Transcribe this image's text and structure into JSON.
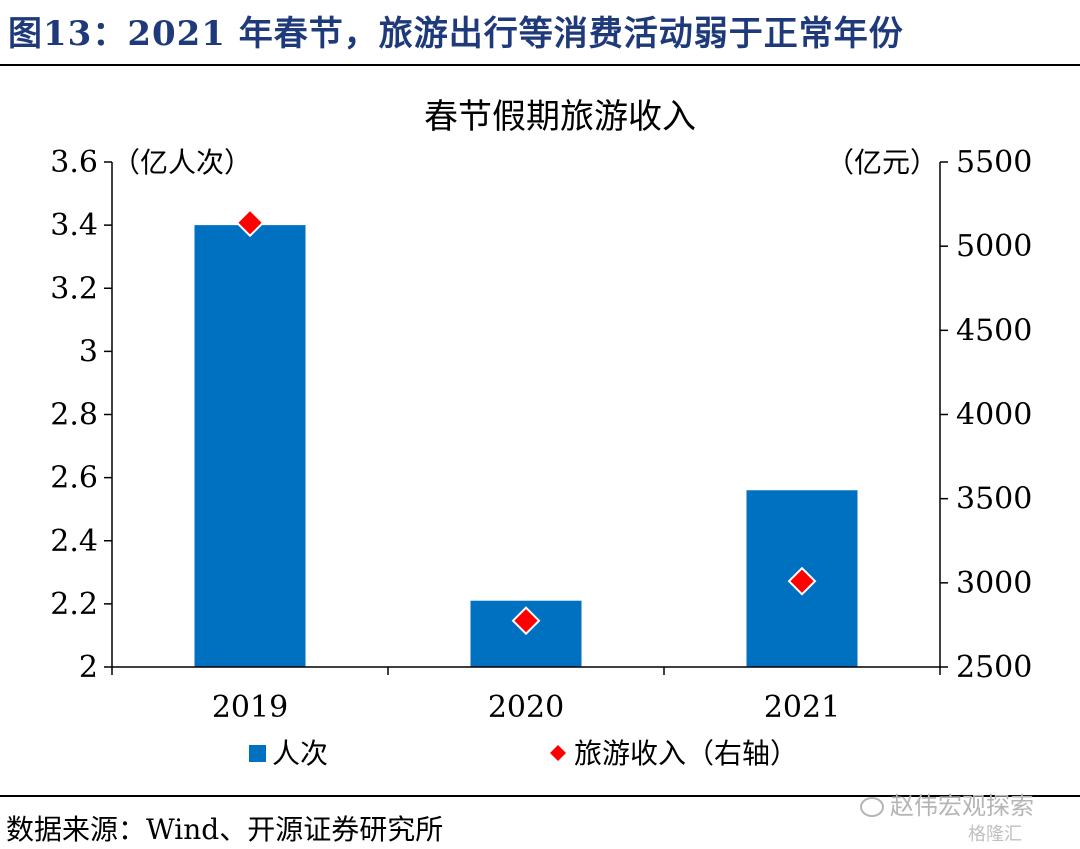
{
  "header": {
    "figure_title": "图13：2021 年春节，旅游出行等消费活动弱于正常年份"
  },
  "chart_data": {
    "type": "bar",
    "title": "春节假期旅游收入",
    "categories": [
      "2019",
      "2020",
      "2021"
    ],
    "series": [
      {
        "name": "人次",
        "kind": "bar",
        "axis": "left",
        "values": [
          3.4,
          2.21,
          2.56
        ],
        "color": "#0070c0"
      },
      {
        "name": "旅游收入（右轴）",
        "kind": "marker",
        "axis": "right",
        "values": [
          5139,
          2775,
          3010
        ],
        "color": "#ff0000"
      }
    ],
    "y_left": {
      "unit_label": "（亿人次）",
      "ylim": [
        2,
        3.6
      ],
      "ticks": [
        "2",
        "2.2",
        "2.4",
        "2.6",
        "2.8",
        "3",
        "3.2",
        "3.4",
        "3.6"
      ]
    },
    "y_right": {
      "unit_label": "（亿元）",
      "ylim": [
        2500,
        5500
      ],
      "ticks": [
        "2500",
        "3000",
        "3500",
        "4000",
        "4500",
        "5000",
        "5500"
      ]
    },
    "grid": false,
    "legend_position": "bottom"
  },
  "footer": {
    "source": "数据来源：Wind、开源证券研究所",
    "watermark": "赵伟宏观探索",
    "logo_text": "格隆汇"
  }
}
